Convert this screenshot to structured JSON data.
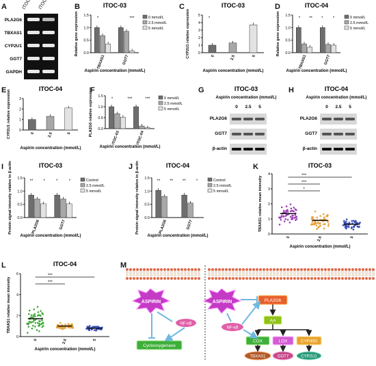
{
  "panel_letters": {
    "A": "A",
    "B": "B",
    "C": "C",
    "D": "D",
    "E": "E",
    "F": "F",
    "G": "G",
    "H": "H",
    "I": "I",
    "J": "J",
    "K": "K",
    "L": "L",
    "M": "M"
  },
  "gel": {
    "lanes": [
      "ITOC-03",
      "ITOC-04"
    ],
    "rows": [
      "PLA2G6",
      "TBXAS1",
      "CYP2U1",
      "GGT7",
      "GAPDH"
    ]
  },
  "legend_3": [
    "0 mmol/L",
    "2.5 mmol/L",
    "5 mmol/L"
  ],
  "legend_ctrl": [
    "Control",
    "2.5 mmol/L",
    "5 mmol/L"
  ],
  "colors": {
    "dark": "#6e6e6e",
    "mid": "#a8a8a8",
    "light": "#e3e3e3",
    "purple": "#9b3fb5",
    "orange": "#e6a23c",
    "blue": "#3b4fb8",
    "green": "#3fa83a"
  },
  "blots": {
    "G": {
      "title": "ITOC-03",
      "subtitle": "Aspirin concentration (mmol/L)",
      "lanes": [
        "0",
        "2.5",
        "5"
      ],
      "rows": [
        "PLA2G6",
        "GGT7",
        "β-actin"
      ]
    },
    "H": {
      "title": "ITOC-04",
      "subtitle": "Aspirin concentration (mmol/L)",
      "lanes": [
        "0",
        "2.5",
        "5"
      ],
      "rows": [
        "PLA2G6",
        "GGT7",
        "β-actin"
      ]
    }
  },
  "pathway": {
    "left": {
      "aspirin": "ASPIRIN",
      "nfkb": "NF-κB",
      "cox": "Cyclooxygenase"
    },
    "right": {
      "aspirin": "ASPIRIN",
      "pla2g6": "PLA2G6",
      "aa": "AA",
      "nfkb": "NF-κB",
      "cox": "COX",
      "lox": "LOX",
      "cyp450": "CYP450",
      "tbxas1": "TBXAS1",
      "ggt7": "GGT7",
      "cyp2u1": "CYP2U1"
    }
  },
  "chart_data": [
    {
      "panel": "B",
      "type": "bar",
      "title": "ITOC-03",
      "xlabel": "Aspirin concentration (mmol/L)",
      "ylabel": "Relative gene expression",
      "categories": [
        "TBXAS1",
        "GGT7"
      ],
      "ylim": [
        0,
        1.5
      ],
      "yticks": [
        "0.0",
        "0.5",
        "1.0",
        "1.5"
      ],
      "series": [
        {
          "name": "0 mmol/L",
          "values": [
            1.0,
            1.0
          ]
        },
        {
          "name": "2.5 mmol/L",
          "values": [
            0.68,
            0.85
          ]
        },
        {
          "name": "5 mmol/L",
          "values": [
            0.35,
            0.07
          ]
        }
      ],
      "stars": [
        "*",
        "***"
      ]
    },
    {
      "panel": "C",
      "type": "bar",
      "title": "ITOC-03",
      "xlabel": "Aspirin concentration (mmol/L)",
      "ylabel": "CYP2U1 relative expression",
      "categories": [
        "0",
        "2.5",
        "5"
      ],
      "ylim": [
        0,
        5
      ],
      "yticks": [
        "0",
        "1",
        "2",
        "3",
        "4",
        "5"
      ],
      "values": [
        1.0,
        1.3,
        3.7
      ],
      "stars": [
        "*"
      ]
    },
    {
      "panel": "D",
      "type": "bar",
      "title": "ITOC-04",
      "xlabel": "Aspirin concentration (mmol/L)",
      "ylabel": "Relative gene expression",
      "categories": [
        "TBXAS1",
        "GGT7"
      ],
      "ylim": [
        0,
        1.5
      ],
      "yticks": [
        "0.0",
        "0.5",
        "1.0",
        "1.5"
      ],
      "series": [
        {
          "name": "0 mmol/L",
          "values": [
            1.0,
            1.0
          ]
        },
        {
          "name": "2.5 mmol/L",
          "values": [
            0.35,
            0.33
          ]
        },
        {
          "name": "5 mmol/L",
          "values": [
            0.22,
            0.3
          ]
        }
      ],
      "stars": [
        "*",
        "**",
        "*",
        "*"
      ]
    },
    {
      "panel": "E",
      "type": "bar",
      "title": "ITOC-04",
      "xlabel": "Aspirin concentration (mmol/L)",
      "ylabel": "CYP2U1 relative expression",
      "categories": [
        "0",
        "2.5",
        "5"
      ],
      "ylim": [
        0,
        3
      ],
      "yticks": [
        "0",
        "1",
        "2",
        "3"
      ],
      "values": [
        1.0,
        1.3,
        2.1
      ]
    },
    {
      "panel": "F",
      "type": "bar",
      "xlabel": "Aspirin concentration (mmol/L)",
      "ylabel": "PLA2G6 relative expression",
      "categories": [
        "ITOC-03",
        "ITOC-04"
      ],
      "ylim": [
        0,
        1.5
      ],
      "yticks": [
        "0.0",
        "0.5",
        "1.0",
        "1.5"
      ],
      "series": [
        {
          "name": "0 mmol/L",
          "values": [
            1.0,
            1.0
          ]
        },
        {
          "name": "2.5 mmol/L",
          "values": [
            0.68,
            0.12
          ]
        },
        {
          "name": "5 mmol/L",
          "values": [
            0.52,
            0.04
          ]
        }
      ],
      "stars": [
        "*",
        "***",
        "***"
      ]
    },
    {
      "panel": "I",
      "type": "bar",
      "title": "ITOC-03",
      "xlabel": "Aspirin concentration (mmol/L)",
      "ylabel": "Protein signal intensity relative to β-actin",
      "categories": [
        "PLA2G6",
        "GGT7"
      ],
      "ylim": [
        0,
        1.5
      ],
      "yticks": [
        "0.0",
        "0.5",
        "1.0",
        "1.5"
      ],
      "series": [
        {
          "name": "Control",
          "values": [
            0.85,
            0.85
          ]
        },
        {
          "name": "2.5 mmol/L",
          "values": [
            0.7,
            0.7
          ]
        },
        {
          "name": "5 mmol/L",
          "values": [
            0.52,
            0.52
          ]
        }
      ],
      "stars": [
        "**",
        "*",
        "*",
        "*"
      ]
    },
    {
      "panel": "J",
      "type": "bar",
      "title": "ITOC-04",
      "xlabel": "Aspirin concentration (mmol/L)",
      "ylabel": "Protein signal intensity relative to β-actin",
      "categories": [
        "PLA2G6",
        "GGT7"
      ],
      "ylim": [
        0,
        1.5
      ],
      "yticks": [
        "0.0",
        "0.5",
        "1.0",
        "1.5"
      ],
      "series": [
        {
          "name": "Control",
          "values": [
            1.03,
            0.85
          ]
        },
        {
          "name": "2.5 mmol/L",
          "values": [
            0.8,
            0.55
          ]
        },
        {
          "name": "5 mmol/L",
          "values": [
            0,
            0
          ]
        }
      ],
      "stars": [
        "**",
        "**",
        "**",
        "*"
      ]
    },
    {
      "panel": "K",
      "type": "scatter",
      "title": "ITOC-03",
      "xlabel": "Aspirin concentration (mmol/L)",
      "ylabel": "TBXAS1 relative mean intensity",
      "categories": [
        "0",
        "2.5",
        "5"
      ],
      "ylim": [
        0,
        4
      ],
      "yticks": [
        "0",
        "1",
        "2",
        "3",
        "4"
      ],
      "means": [
        1.35,
        0.9,
        0.65
      ],
      "spread": [
        0.6,
        0.5,
        0.3
      ],
      "counts": [
        55,
        55,
        55
      ],
      "stars": [
        "***",
        "***",
        "*"
      ]
    },
    {
      "panel": "L",
      "type": "scatter",
      "title": "ITOC-04",
      "xlabel": "Aspirin concentration (mmol/L)",
      "ylabel": "TBXAS1 relative mean intensity",
      "categories": [
        "0",
        "2.5",
        "5"
      ],
      "ylim": [
        0,
        6
      ],
      "yticks": [
        "0",
        "2",
        "4",
        "6"
      ],
      "means": [
        1.7,
        1.0,
        0.8
      ],
      "spread": [
        1.1,
        0.25,
        0.2
      ],
      "counts": [
        60,
        60,
        60
      ],
      "stars": [
        "***",
        "***"
      ]
    }
  ]
}
